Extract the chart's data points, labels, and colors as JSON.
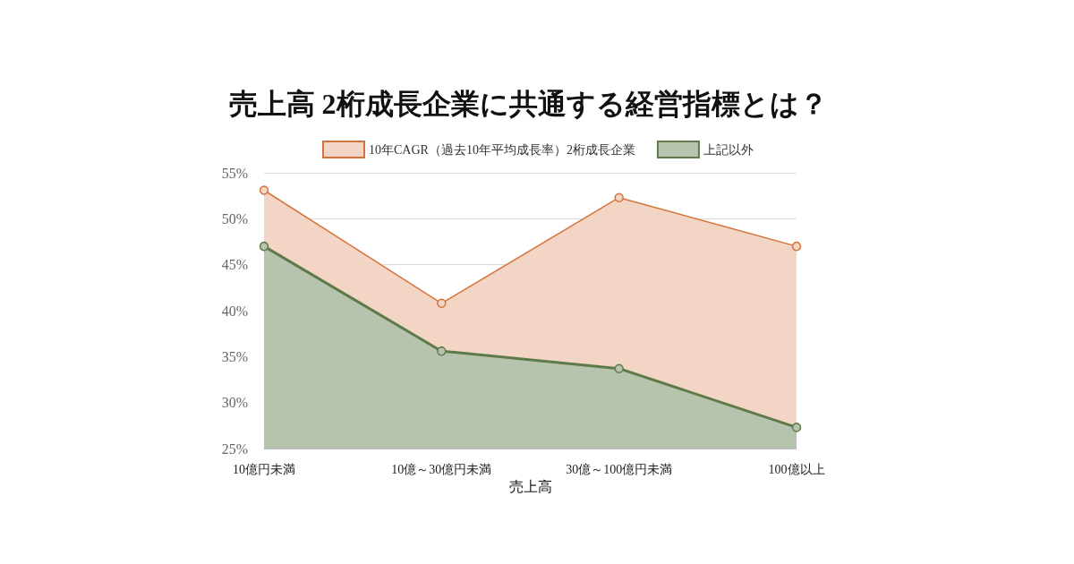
{
  "chart_data": {
    "type": "area",
    "title": "売上高 2桁成長企業に共通する経営指標とは？",
    "xlabel": "売上高",
    "categories": [
      "10億円未満",
      "10億～30億円未満",
      "30億～100億円未満",
      "100億以上"
    ],
    "series": [
      {
        "name": "10年CAGR（過去10年平均成長率）2桁成長企業",
        "color": "#d4733a",
        "values": [
          53.1,
          40.8,
          52.3,
          47.0
        ]
      },
      {
        "name": "上記以外",
        "color": "#5d7a48",
        "values": [
          47.0,
          35.6,
          33.7,
          27.3
        ]
      }
    ],
    "ylim": [
      25,
      55
    ],
    "yticks": [
      {
        "value": 25,
        "label": "25%"
      },
      {
        "value": 30,
        "label": "30%"
      },
      {
        "value": 35,
        "label": "35%"
      },
      {
        "value": 40,
        "label": "40%"
      },
      {
        "value": 45,
        "label": "45%"
      },
      {
        "value": 50,
        "label": "50%"
      },
      {
        "value": 55,
        "label": "55%"
      }
    ],
    "grid": "y",
    "legend": "top",
    "marker": "circle",
    "line_style": "solid"
  }
}
